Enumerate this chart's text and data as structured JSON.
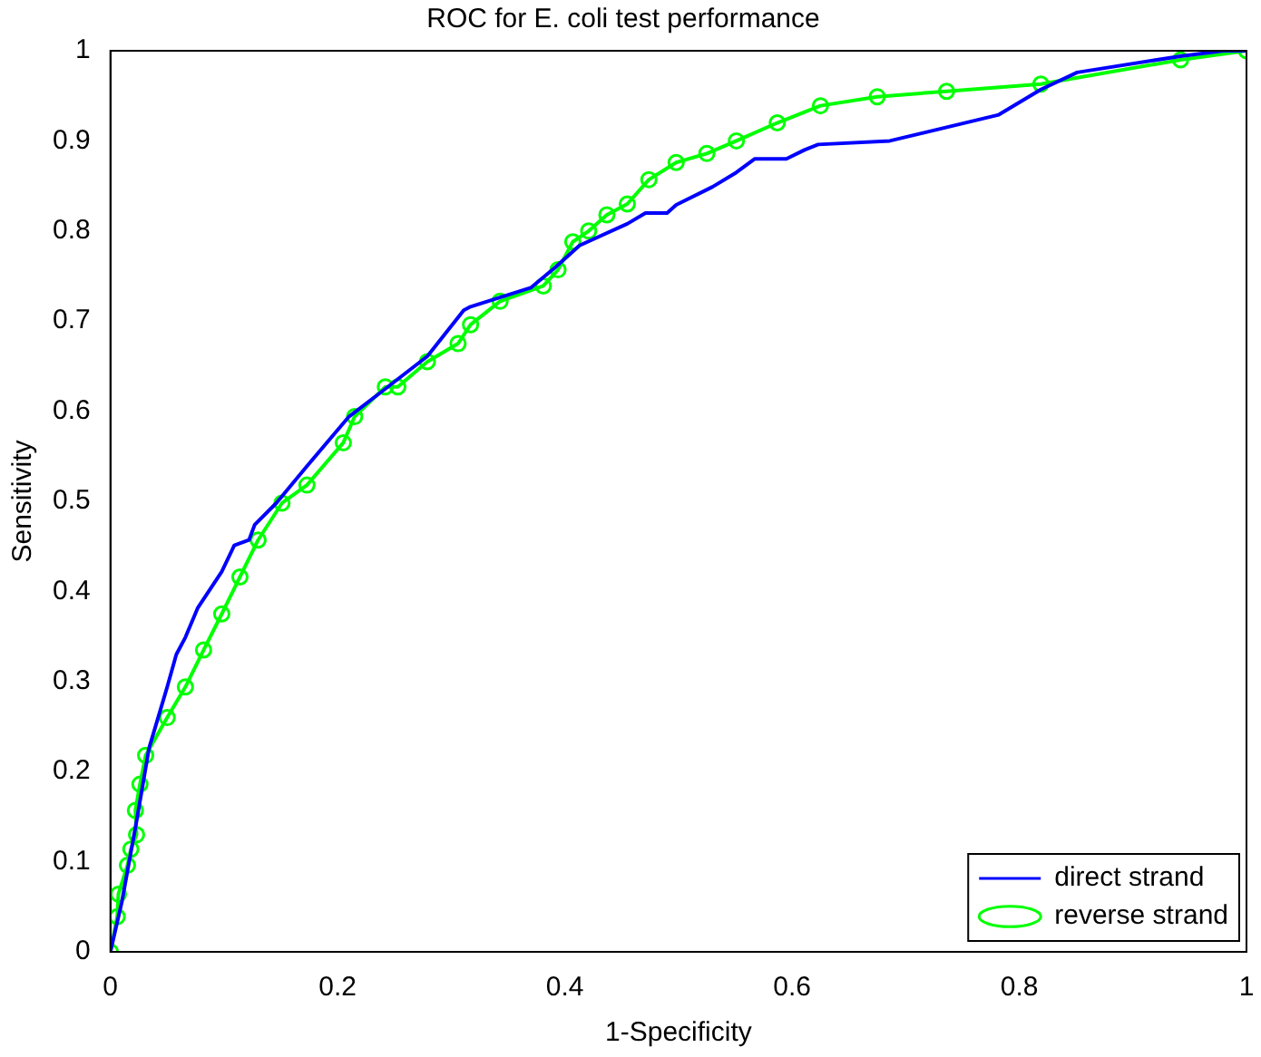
{
  "chart_data": {
    "type": "line",
    "title": "ROC for E. coli test performance",
    "xlabel": "1-Specificity",
    "ylabel": "Sensitivity",
    "xlim": [
      0,
      1
    ],
    "ylim": [
      0,
      1
    ],
    "xticks": [
      0,
      0.2,
      0.4,
      0.6,
      0.8,
      1
    ],
    "yticks": [
      0,
      0.1,
      0.2,
      0.3,
      0.4,
      0.5,
      0.6,
      0.7,
      0.8,
      0.9,
      1
    ],
    "grid": false,
    "legend": "bottom right",
    "series": [
      {
        "name": "direct strand",
        "color": "#0000ff",
        "marker": "none",
        "x": [
          0,
          0.01,
          0.023,
          0.034,
          0.05,
          0.058,
          0.066,
          0.077,
          0.098,
          0.109,
          0.122,
          0.127,
          0.146,
          0.173,
          0.21,
          0.237,
          0.279,
          0.311,
          0.317,
          0.37,
          0.391,
          0.413,
          0.455,
          0.471,
          0.49,
          0.498,
          0.53,
          0.551,
          0.567,
          0.595,
          0.611,
          0.623,
          0.686,
          0.782,
          0.819,
          0.851,
          0.942,
          0.98,
          1
        ],
        "values": [
          0,
          0.055,
          0.145,
          0.226,
          0.294,
          0.33,
          0.349,
          0.382,
          0.422,
          0.451,
          0.457,
          0.474,
          0.498,
          0.539,
          0.594,
          0.62,
          0.661,
          0.712,
          0.716,
          0.737,
          0.759,
          0.784,
          0.808,
          0.82,
          0.82,
          0.829,
          0.849,
          0.865,
          0.88,
          0.88,
          0.89,
          0.896,
          0.9,
          0.929,
          0.957,
          0.976,
          0.994,
          1,
          1
        ]
      },
      {
        "name": "reverse strand",
        "color": "#00ff00",
        "marker": "circle",
        "x": [
          0,
          0.006,
          0.007,
          0.015,
          0.018,
          0.023,
          0.022,
          0.026,
          0.031,
          0.05,
          0.066,
          0.082,
          0.098,
          0.114,
          0.13,
          0.151,
          0.173,
          0.205,
          0.215,
          0.242,
          0.253,
          0.279,
          0.306,
          0.317,
          0.343,
          0.381,
          0.394,
          0.407,
          0.421,
          0.437,
          0.455,
          0.474,
          0.498,
          0.525,
          0.551,
          0.587,
          0.625,
          0.675,
          0.736,
          0.819,
          0.942,
          1
        ],
        "values": [
          0,
          0.039,
          0.064,
          0.096,
          0.114,
          0.13,
          0.157,
          0.186,
          0.218,
          0.26,
          0.294,
          0.335,
          0.375,
          0.416,
          0.457,
          0.498,
          0.518,
          0.565,
          0.594,
          0.627,
          0.627,
          0.655,
          0.675,
          0.696,
          0.722,
          0.739,
          0.757,
          0.788,
          0.8,
          0.818,
          0.83,
          0.857,
          0.876,
          0.886,
          0.9,
          0.92,
          0.939,
          0.949,
          0.955,
          0.963,
          0.99,
          1
        ]
      }
    ]
  }
}
